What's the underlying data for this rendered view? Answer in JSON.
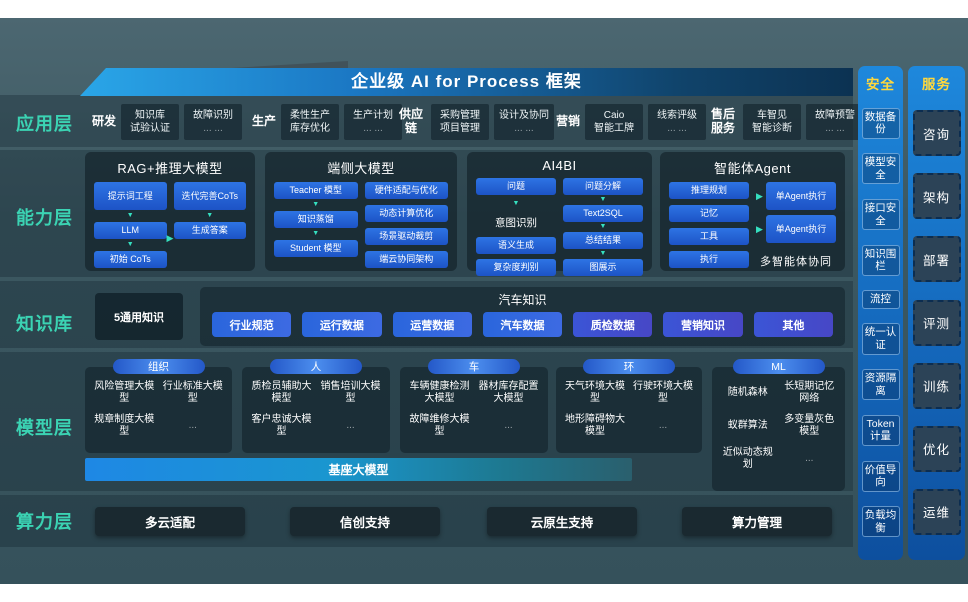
{
  "banner": {
    "title": "企业级 AI for Process 框架"
  },
  "icons": {
    "arrow_down": "▼",
    "arrow_right": "▶"
  },
  "colors": {
    "accent_teal": "#3bd3b3",
    "accent_yellow": "#ffd83d",
    "box_blue": "#2468dc",
    "banner_blue": "#2aa6e8"
  },
  "side_labels": [
    "应用层",
    "能力层",
    "知识库",
    "模型层",
    "算力层"
  ],
  "application": {
    "groups": [
      {
        "name": "研发",
        "box1": [
          "知识库",
          "试验认证"
        ],
        "box2": [
          "故障识别",
          "... ..."
        ]
      },
      {
        "name": "生产",
        "box1": [
          "柔性生产",
          "库存优化"
        ],
        "box2": [
          "生产计划",
          "... ..."
        ]
      },
      {
        "name": "供应链",
        "box1": [
          "采购管理",
          "项目管理"
        ],
        "box2": [
          "设计及协同",
          "... ..."
        ]
      },
      {
        "name": "营销",
        "box1": [
          "Caio",
          "智能工牌"
        ],
        "box2": [
          "线索评级",
          "... ..."
        ]
      },
      {
        "name": "售后服务",
        "box1": [
          "车智见",
          "智能诊断"
        ],
        "box2": [
          "故障预警",
          "... ..."
        ]
      }
    ]
  },
  "capability": {
    "rag": {
      "title": "RAG+推理大模型",
      "steps_left": [
        "提示词工程",
        "LLM",
        "初始 CoTs"
      ],
      "steps_right": [
        "迭代完善CoTs",
        "生成答案"
      ]
    },
    "edge": {
      "title": "端侧大模型",
      "flow": [
        "Teacher 模型",
        "知识蒸馏",
        "Student 模型"
      ],
      "features": [
        "硬件适配与优化",
        "动态计算优化",
        "场景驱动裁剪",
        "端云协同架构"
      ]
    },
    "ai4bi": {
      "title": "AI4BI",
      "left": [
        "问题",
        "意图识别",
        "语义生成",
        "复杂度判别"
      ],
      "right": [
        "问题分解",
        "Text2SQL",
        "总结结果",
        "图展示"
      ]
    },
    "agent": {
      "title": "智能体Agent",
      "modules": [
        "推理规划",
        "记忆",
        "工具",
        "执行"
      ],
      "exec": [
        "单Agent执行",
        "单Agent执行"
      ],
      "caption": "多智能体协同"
    }
  },
  "knowledge": {
    "general": "5通用知识",
    "panel_title": "汽车知识",
    "pills": [
      "行业规范",
      "运行数据",
      "运营数据",
      "汽车数据",
      "质检数据",
      "营销知识",
      "其他"
    ]
  },
  "model": {
    "groups": [
      {
        "tag": "组织",
        "items": [
          "风险管理大模型",
          "行业标准大模型",
          "规章制度大模型",
          "..."
        ]
      },
      {
        "tag": "人",
        "items": [
          "质检员辅助大模型",
          "销售培训大模型",
          "客户忠诚大模型",
          "..."
        ]
      },
      {
        "tag": "车",
        "items": [
          "车辆健康检测大模型",
          "器材库存配置大模型",
          "故障维修大模型",
          "..."
        ]
      },
      {
        "tag": "环",
        "items": [
          "天气环境大模型",
          "行驶环境大模型",
          "地形障碍物大模型",
          "..."
        ]
      },
      {
        "tag": "ML",
        "items": [
          "随机森林",
          "长短期记忆网络",
          "蚁群算法",
          "多变量灰色模型",
          "近似动态规划",
          "..."
        ]
      }
    ],
    "base": "基座大模型"
  },
  "compute": {
    "items": [
      "多云适配",
      "信创支持",
      "云原生支持",
      "算力管理"
    ]
  },
  "security": {
    "header": "安全",
    "items": [
      "数据备份",
      "模型安全",
      "接口安全",
      "知识围栏",
      "流控",
      "统一认证",
      "资源隔离",
      "Token计量",
      "价值导向",
      "负载均衡"
    ]
  },
  "service": {
    "header": "服务",
    "items": [
      "咨询",
      "架构",
      "部署",
      "评测",
      "训练",
      "优化",
      "运维"
    ]
  }
}
